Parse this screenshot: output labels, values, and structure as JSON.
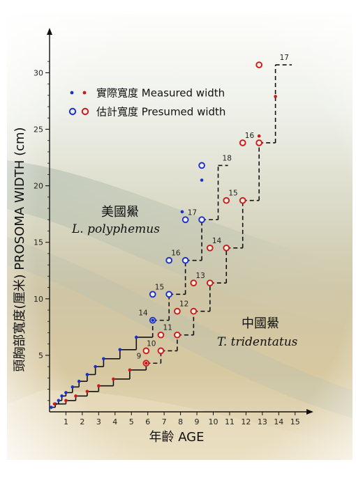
{
  "chart_data": {
    "type": "line",
    "title": "",
    "xlabel": "年齡 AGE",
    "ylabel": "頭胸部寬度(厘米) PROSOMA WIDTH (cm)",
    "xlim": [
      0,
      16
    ],
    "ylim": [
      0,
      31.5
    ],
    "x_ticks": [
      1,
      2,
      3,
      4,
      5,
      6,
      7,
      8,
      9,
      10,
      11,
      12,
      13,
      14,
      15
    ],
    "y_ticks": [
      5,
      10,
      15,
      20,
      25,
      30
    ],
    "grid": false,
    "legend": {
      "placement": "top-left",
      "entries": [
        {
          "label": "實際寬度 Measured width",
          "marker": "filled-dot",
          "colors": [
            "#1a2fd0",
            "#cc1a1a"
          ]
        },
        {
          "label": "估計寬度 Presumed width",
          "marker": "open-circle",
          "colors": [
            "#1a2fd0",
            "#cc1a1a"
          ]
        }
      ]
    },
    "colors": {
      "blue": "#1a2fd0",
      "red": "#cc1a1a"
    },
    "species": [
      {
        "name_cn": "美國鱟",
        "name_latin": "L. polyphemus"
      },
      {
        "name_cn": "中國鱟",
        "name_latin": "T. tridentatus"
      }
    ],
    "series": [
      {
        "color": "blue",
        "step_x": [
          0.1,
          0.35,
          0.55,
          0.75,
          1.0,
          1.4,
          1.8,
          2.3,
          2.8,
          3.3,
          4.3,
          5.3,
          6.3,
          7.3,
          8.3,
          9.3,
          10.3,
          10.9
        ],
        "step_y": [
          0.4,
          0.7,
          1.0,
          1.4,
          1.7,
          2.2,
          2.7,
          3.3,
          4.0,
          4.7,
          5.5,
          6.6,
          8.1,
          10.4,
          13.4,
          17.0,
          21.8
        ],
        "measured": [
          [
            0.1,
            0.4
          ],
          [
            0.35,
            0.7
          ],
          [
            0.55,
            1.0
          ],
          [
            0.75,
            1.4
          ],
          [
            1.0,
            1.7
          ],
          [
            1.4,
            2.2
          ],
          [
            1.8,
            2.7
          ],
          [
            2.3,
            3.3
          ],
          [
            2.8,
            4.0
          ],
          [
            3.3,
            4.7
          ],
          [
            4.3,
            5.5
          ],
          [
            5.3,
            6.6
          ],
          [
            6.3,
            8.1
          ],
          [
            8.1,
            17.7
          ],
          [
            9.3,
            20.5
          ]
        ],
        "presumed": [
          [
            6.3,
            8.1
          ],
          [
            6.3,
            10.4
          ],
          [
            7.3,
            10.4
          ],
          [
            7.3,
            13.4
          ],
          [
            8.3,
            13.4
          ],
          [
            8.3,
            17.0
          ],
          [
            9.3,
            17.0
          ],
          [
            9.3,
            21.8
          ]
        ],
        "instar_labels": [
          {
            "text": "14",
            "x": 6.3,
            "y": 8.1
          },
          {
            "text": "15",
            "x": 7.3,
            "y": 10.4
          },
          {
            "text": "16",
            "x": 8.3,
            "y": 13.4
          },
          {
            "text": "17",
            "x": 9.3,
            "y": 17.0
          },
          {
            "text": "18",
            "x": 10.3,
            "y": 21.8
          }
        ]
      },
      {
        "color": "red",
        "step_x": [
          0.3,
          1.0,
          1.6,
          2.3,
          3.0,
          3.9,
          4.9,
          5.9,
          6.8,
          7.8,
          8.8,
          9.8,
          10.8,
          11.8,
          12.8,
          13.8,
          14.8,
          15.5
        ],
        "step_y": [
          0.7,
          1.0,
          1.4,
          1.8,
          2.3,
          2.9,
          3.7,
          4.3,
          5.4,
          6.8,
          8.9,
          11.4,
          14.5,
          18.7,
          23.8,
          30.7
        ],
        "measured": [
          [
            0.3,
            0.7
          ],
          [
            1.0,
            1.0
          ],
          [
            1.6,
            1.4
          ],
          [
            2.3,
            1.8
          ],
          [
            3.0,
            2.3
          ],
          [
            3.9,
            2.9
          ],
          [
            4.9,
            3.7
          ],
          [
            5.9,
            4.3
          ],
          [
            12.8,
            24.4
          ],
          [
            13.8,
            27.9
          ]
        ],
        "presumed": [
          [
            5.9,
            4.3
          ],
          [
            5.9,
            5.4
          ],
          [
            6.8,
            5.4
          ],
          [
            6.8,
            6.8
          ],
          [
            7.8,
            6.8
          ],
          [
            7.8,
            8.9
          ],
          [
            8.8,
            8.9
          ],
          [
            8.8,
            11.4
          ],
          [
            9.8,
            11.4
          ],
          [
            9.8,
            14.5
          ],
          [
            10.8,
            14.5
          ],
          [
            10.8,
            18.7
          ],
          [
            11.8,
            18.7
          ],
          [
            11.8,
            23.8
          ],
          [
            12.8,
            23.8
          ],
          [
            12.8,
            30.7
          ]
        ],
        "instar_labels": [
          {
            "text": "9",
            "x": 5.9,
            "y": 4.3
          },
          {
            "text": "10",
            "x": 6.8,
            "y": 5.4
          },
          {
            "text": "11",
            "x": 7.8,
            "y": 6.8
          },
          {
            "text": "12",
            "x": 8.8,
            "y": 8.9
          },
          {
            "text": "13",
            "x": 9.8,
            "y": 11.4
          },
          {
            "text": "14",
            "x": 10.8,
            "y": 14.5
          },
          {
            "text": "15",
            "x": 11.8,
            "y": 18.7
          },
          {
            "text": "16",
            "x": 12.8,
            "y": 23.8
          },
          {
            "text": "17",
            "x": 13.8,
            "y": 30.7
          }
        ]
      }
    ]
  }
}
